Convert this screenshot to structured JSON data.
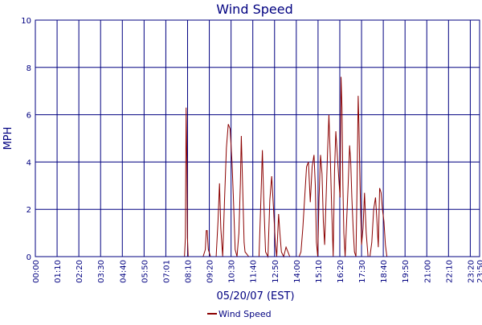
{
  "chart_data": {
    "type": "line",
    "title": "Wind Speed",
    "xlabel": "05/20/07 (EST)",
    "ylabel": "MPH",
    "ylim": [
      0,
      10
    ],
    "yticks": [
      0,
      2,
      4,
      6,
      8,
      10
    ],
    "xlim_hours": [
      0,
      23.8333
    ],
    "xtick_labels": [
      "00:00",
      "01:10",
      "02:20",
      "03:30",
      "04:40",
      "05:50",
      "07:01",
      "08:10",
      "09:20",
      "10:30",
      "11:40",
      "12:50",
      "14:00",
      "15:10",
      "16:20",
      "17:30",
      "18:40",
      "19:50",
      "21:00",
      "22:10",
      "23:20",
      "23:50"
    ],
    "grid": true,
    "legend": "bottom-center",
    "colors": {
      "line": "#8b0000",
      "grid": "#000080",
      "axis_text": "#000080",
      "title": "#000080"
    },
    "series": [
      {
        "name": "Wind Speed",
        "x_hours": [
          0,
          8.0,
          8.05,
          8.09,
          8.13,
          8.16,
          8.2,
          8.25,
          8.4,
          8.6,
          8.8,
          9.0,
          9.12,
          9.17,
          9.22,
          9.28,
          9.4,
          9.55,
          9.7,
          9.8,
          9.88,
          9.95,
          10.05,
          10.15,
          10.25,
          10.35,
          10.45,
          10.55,
          10.62,
          10.72,
          10.82,
          10.92,
          11.0,
          11.05,
          11.12,
          11.2,
          11.25,
          11.35,
          11.45,
          11.55,
          11.7,
          11.85,
          12.0,
          12.1,
          12.18,
          12.25,
          12.35,
          12.48,
          12.58,
          12.68,
          12.78,
          12.88,
          12.95,
          13.05,
          13.12,
          13.2,
          13.32,
          13.45,
          13.55,
          13.65,
          13.75,
          13.85,
          13.95,
          14.05,
          14.15,
          14.25,
          14.35,
          14.45,
          14.55,
          14.65,
          14.75,
          14.85,
          14.95,
          15.02,
          15.08,
          15.15,
          15.22,
          15.3,
          15.38,
          15.45,
          15.52,
          15.6,
          15.68,
          15.75,
          15.82,
          15.9,
          15.98,
          16.05,
          16.12,
          16.2,
          16.28,
          16.35,
          16.4,
          16.45,
          16.5,
          16.55,
          16.62,
          16.7,
          16.78,
          16.86,
          16.92,
          16.98,
          17.05,
          17.12,
          17.2,
          17.26,
          17.32,
          17.36,
          17.42,
          17.5,
          17.58,
          17.66,
          17.75,
          17.85,
          17.95,
          18.05,
          18.15,
          18.25,
          18.32,
          18.4,
          18.47,
          18.55,
          18.62,
          18.7,
          18.78,
          18.86,
          18.95,
          19.05,
          23.8333
        ],
        "values": [
          0,
          0,
          0.8,
          6.3,
          4.0,
          0.8,
          0,
          0,
          0,
          0,
          0,
          0,
          0.3,
          1.1,
          1.1,
          0.3,
          0,
          0,
          0,
          1.5,
          3.1,
          1.2,
          0,
          2.4,
          4.6,
          5.6,
          5.4,
          4.0,
          2.6,
          0.3,
          0,
          1.0,
          3.1,
          5.1,
          3.0,
          0.6,
          0.2,
          0.1,
          0,
          0,
          0,
          0,
          0,
          2.4,
          4.5,
          2.5,
          0.2,
          0,
          2.4,
          3.4,
          2.0,
          0.5,
          0,
          1.8,
          1.0,
          0.2,
          0,
          0.4,
          0.2,
          0,
          0,
          0,
          0,
          0,
          0,
          0.2,
          1.2,
          2.5,
          3.8,
          4.0,
          2.3,
          3.8,
          4.3,
          3.0,
          0.6,
          0,
          2.5,
          4.3,
          3.5,
          1.5,
          0.5,
          2.5,
          4.5,
          6.0,
          4.3,
          2.0,
          0,
          3.6,
          5.3,
          4.3,
          3.3,
          2.5,
          7.6,
          6.3,
          3.0,
          1.0,
          0,
          1.5,
          3.0,
          4.7,
          4.0,
          2.5,
          1.2,
          0.2,
          0,
          3.0,
          6.8,
          5.6,
          3.0,
          0.5,
          1.2,
          2.7,
          1.0,
          0,
          0,
          0.6,
          2.0,
          2.5,
          1.6,
          0.4,
          2.9,
          2.7,
          2.0,
          1.5,
          0.5,
          0,
          0,
          0,
          0
        ]
      }
    ]
  }
}
